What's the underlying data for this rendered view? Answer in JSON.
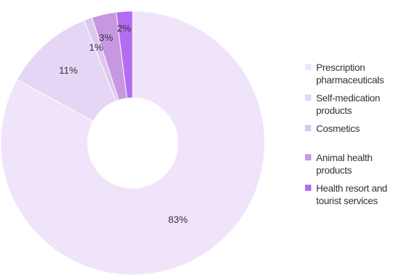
{
  "chart_data": {
    "type": "pie",
    "donut": true,
    "categories": [
      "Prescription pharmaceuticals",
      "Self-medication products",
      "Cosmetics",
      "Animal health products",
      "Health resort and tourist services"
    ],
    "values": [
      83,
      11,
      1,
      3,
      2
    ],
    "data_labels": [
      "83%",
      "11%",
      "1%",
      "3%",
      "2%"
    ],
    "colors": [
      "#efe4fa",
      "#e6d6f5",
      "#dcc8ef",
      "#c798e1",
      "#b36cf0"
    ],
    "legend_position": "right",
    "title": ""
  }
}
